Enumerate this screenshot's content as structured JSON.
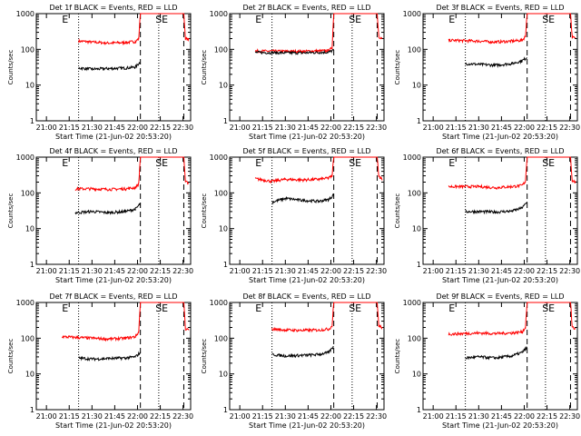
{
  "figure": {
    "start_time_label": "Start Time (21-Jun-02 20:53:20)",
    "ylabel": "Counts/sec",
    "x_tick_labels": [
      "21:00",
      "21:15",
      "21:30",
      "21:45",
      "22:00",
      "22:15",
      "22:30"
    ],
    "y_tick_labels": [
      "1",
      "10",
      "100",
      "1000"
    ],
    "colors": {
      "events": "#000000",
      "lld": "#ff0000"
    }
  },
  "chart_data": [
    {
      "type": "line",
      "title": "Det 1f BLACK = Events, RED = LLD",
      "xlabel": "Start Time (21-Jun-02 20:53:20)",
      "ylabel": "Counts/sec",
      "yscale": "log",
      "ylim": [
        1,
        1000
      ],
      "xlim_minutes": [
        -9,
        34
      ],
      "x_ticks": [
        "21:00",
        "21:15",
        "21:30",
        "21:45",
        "22:00",
        "22:15",
        "22:30"
      ],
      "markers": [
        {
          "label": "E",
          "minutes": -9
        },
        {
          "label": "SE",
          "minutes": 19
        }
      ],
      "dotted_lines_minutes": [
        -4,
        20
      ],
      "dashed_lines_minutes": [
        14.5,
        27.5
      ],
      "series": [
        {
          "color": "#ff0000",
          "values_at_minutes": [
            [
              -4,
              170
            ],
            [
              0,
              160
            ],
            [
              5,
              150
            ],
            [
              10,
              155
            ],
            [
              13,
              165
            ],
            [
              14,
              200
            ],
            [
              14.5,
              1000
            ],
            [
              27.5,
              1000
            ],
            [
              28,
              200
            ],
            [
              29,
              190
            ]
          ]
        },
        {
          "color": "#000000",
          "values_at_minutes": [
            [
              -4,
              30
            ],
            [
              0,
              28
            ],
            [
              5,
              29
            ],
            [
              10,
              30
            ],
            [
              13,
              32
            ],
            [
              14.5,
              45
            ]
          ]
        }
      ]
    },
    {
      "type": "line",
      "title": "Det 2f BLACK = Events, RED = LLD",
      "xlabel": "Start Time (21-Jun-02 20:53:20)",
      "ylabel": "Counts/sec",
      "yscale": "log",
      "ylim": [
        1,
        1000
      ],
      "xlim_minutes": [
        -9,
        34
      ],
      "x_ticks": [
        "21:00",
        "21:15",
        "21:30",
        "21:45",
        "22:00",
        "22:15",
        "22:30"
      ],
      "markers": [
        {
          "label": "E",
          "minutes": -9
        },
        {
          "label": "SE",
          "minutes": 19
        }
      ],
      "dotted_lines_minutes": [
        -4,
        20
      ],
      "dashed_lines_minutes": [
        14.5,
        27.5
      ],
      "series": [
        {
          "color": "#ff0000",
          "values_at_minutes": [
            [
              -9,
              90
            ],
            [
              0,
              88
            ],
            [
              5,
              88
            ],
            [
              10,
              90
            ],
            [
              13,
              92
            ],
            [
              14,
              110
            ],
            [
              14.5,
              1000
            ],
            [
              27.5,
              1000
            ],
            [
              28,
              230
            ],
            [
              29,
              200
            ]
          ]
        },
        {
          "color": "#000000",
          "values_at_minutes": [
            [
              -9,
              82
            ],
            [
              0,
              80
            ],
            [
              5,
              80
            ],
            [
              10,
              82
            ],
            [
              13,
              84
            ],
            [
              14.5,
              95
            ]
          ]
        }
      ]
    },
    {
      "type": "line",
      "title": "Det 3f BLACK = Events, RED = LLD",
      "xlabel": "Start Time (21-Jun-02 20:53:20)",
      "ylabel": "Counts/sec",
      "yscale": "log",
      "ylim": [
        1,
        1000
      ],
      "xlim_minutes": [
        -9,
        34
      ],
      "x_ticks": [
        "21:00",
        "21:15",
        "21:30",
        "21:45",
        "22:00",
        "22:15",
        "22:30"
      ],
      "markers": [
        {
          "label": "E",
          "minutes": -9
        },
        {
          "label": "SE",
          "minutes": 19
        }
      ],
      "dotted_lines_minutes": [
        -4,
        20
      ],
      "dashed_lines_minutes": [
        14.5,
        27.5
      ],
      "series": [
        {
          "color": "#ff0000",
          "values_at_minutes": [
            [
              -9,
              180
            ],
            [
              0,
              170
            ],
            [
              5,
              160
            ],
            [
              10,
              170
            ],
            [
              13,
              180
            ],
            [
              14,
              230
            ],
            [
              14.5,
              1000
            ],
            [
              27.5,
              1000
            ],
            [
              28,
              220
            ],
            [
              29,
              200
            ]
          ]
        },
        {
          "color": "#000000",
          "values_at_minutes": [
            [
              -4,
              40
            ],
            [
              0,
              38
            ],
            [
              5,
              36
            ],
            [
              10,
              40
            ],
            [
              13,
              48
            ],
            [
              14.5,
              60
            ]
          ]
        }
      ]
    },
    {
      "type": "line",
      "title": "Det 4f BLACK = Events, RED = LLD",
      "xlabel": "Start Time (21-Jun-02 20:53:20)",
      "ylabel": "Counts/sec",
      "yscale": "log",
      "ylim": [
        1,
        1000
      ],
      "xlim_minutes": [
        -9,
        34
      ],
      "x_ticks": [
        "21:00",
        "21:15",
        "21:30",
        "21:45",
        "22:00",
        "22:15",
        "22:30"
      ],
      "markers": [
        {
          "label": "E",
          "minutes": -9
        },
        {
          "label": "SE",
          "minutes": 19
        }
      ],
      "dotted_lines_minutes": [
        -4,
        20
      ],
      "dashed_lines_minutes": [
        14.5,
        27.5
      ],
      "series": [
        {
          "color": "#ff0000",
          "values_at_minutes": [
            [
              -5,
              130
            ],
            [
              0,
              130
            ],
            [
              5,
              125
            ],
            [
              10,
              130
            ],
            [
              13,
              140
            ],
            [
              14,
              180
            ],
            [
              14.5,
              1000
            ],
            [
              27.5,
              1000
            ],
            [
              28,
              200
            ],
            [
              29,
              190
            ]
          ]
        },
        {
          "color": "#000000",
          "values_at_minutes": [
            [
              -5,
              28
            ],
            [
              0,
              30
            ],
            [
              5,
              28
            ],
            [
              10,
              30
            ],
            [
              13,
              35
            ],
            [
              14.5,
              50
            ]
          ]
        }
      ]
    },
    {
      "type": "line",
      "title": "Det 5f BLACK = Events, RED = LLD",
      "xlabel": "Start Time (21-Jun-02 20:53:20)",
      "ylabel": "Counts/sec",
      "yscale": "log",
      "ylim": [
        1,
        1000
      ],
      "xlim_minutes": [
        -9,
        34
      ],
      "x_ticks": [
        "21:00",
        "21:15",
        "21:30",
        "21:45",
        "22:00",
        "22:15",
        "22:30"
      ],
      "markers": [
        {
          "label": "E",
          "minutes": -9
        },
        {
          "label": "SE",
          "minutes": 19
        }
      ],
      "dotted_lines_minutes": [
        -4,
        20
      ],
      "dashed_lines_minutes": [
        14.5,
        27.5
      ],
      "series": [
        {
          "color": "#ff0000",
          "values_at_minutes": [
            [
              -9,
              250
            ],
            [
              -4,
              210
            ],
            [
              0,
              240
            ],
            [
              5,
              230
            ],
            [
              10,
              240
            ],
            [
              13,
              260
            ],
            [
              14,
              300
            ],
            [
              14.5,
              1000
            ],
            [
              27.5,
              1000
            ],
            [
              28,
              300
            ],
            [
              29,
              240
            ]
          ]
        },
        {
          "color": "#000000",
          "values_at_minutes": [
            [
              -4,
              55
            ],
            [
              0,
              70
            ],
            [
              5,
              62
            ],
            [
              10,
              58
            ],
            [
              13,
              65
            ],
            [
              14.5,
              90
            ]
          ]
        }
      ]
    },
    {
      "type": "line",
      "title": "Det 6f BLACK = Events, RED = LLD",
      "xlabel": "Start Time (21-Jun-02 20:53:20)",
      "ylabel": "Counts/sec",
      "yscale": "log",
      "ylim": [
        1,
        1000
      ],
      "xlim_minutes": [
        -9,
        34
      ],
      "x_ticks": [
        "21:00",
        "21:15",
        "21:30",
        "21:45",
        "22:00",
        "22:15",
        "22:30"
      ],
      "markers": [
        {
          "label": "E",
          "minutes": -9
        },
        {
          "label": "SE",
          "minutes": 19
        }
      ],
      "dotted_lines_minutes": [
        -4,
        20
      ],
      "dashed_lines_minutes": [
        14.5,
        27.5
      ],
      "series": [
        {
          "color": "#ff0000",
          "values_at_minutes": [
            [
              -9,
              150
            ],
            [
              0,
              150
            ],
            [
              5,
              140
            ],
            [
              10,
              150
            ],
            [
              13,
              160
            ],
            [
              14,
              210
            ],
            [
              14.5,
              1000
            ],
            [
              27.5,
              1000
            ],
            [
              28,
              220
            ],
            [
              29,
              200
            ]
          ]
        },
        {
          "color": "#000000",
          "values_at_minutes": [
            [
              -4,
              30
            ],
            [
              0,
              30
            ],
            [
              5,
              29
            ],
            [
              10,
              31
            ],
            [
              13,
              38
            ],
            [
              14.5,
              55
            ]
          ]
        }
      ]
    },
    {
      "type": "line",
      "title": "Det 7f BLACK = Events, RED = LLD",
      "xlabel": "Start Time (21-Jun-02 20:53:20)",
      "ylabel": "Counts/sec",
      "yscale": "log",
      "ylim": [
        1,
        1000
      ],
      "xlim_minutes": [
        -9,
        34
      ],
      "x_ticks": [
        "21:00",
        "21:15",
        "21:30",
        "21:45",
        "22:00",
        "22:15",
        "22:30"
      ],
      "markers": [
        {
          "label": "E",
          "minutes": -9
        },
        {
          "label": "SE",
          "minutes": 19
        }
      ],
      "dotted_lines_minutes": [
        -4,
        20
      ],
      "dashed_lines_minutes": [
        14.5,
        27.5
      ],
      "series": [
        {
          "color": "#ff0000",
          "values_at_minutes": [
            [
              -9,
              110
            ],
            [
              0,
              100
            ],
            [
              5,
              95
            ],
            [
              10,
              100
            ],
            [
              13,
              110
            ],
            [
              14,
              150
            ],
            [
              14.5,
              1000
            ],
            [
              27.5,
              1000
            ],
            [
              28,
              180
            ],
            [
              29,
              170
            ]
          ]
        },
        {
          "color": "#000000",
          "values_at_minutes": [
            [
              -4,
              28
            ],
            [
              0,
              26
            ],
            [
              5,
              27
            ],
            [
              10,
              28
            ],
            [
              13,
              30
            ],
            [
              14.5,
              40
            ]
          ]
        }
      ]
    },
    {
      "type": "line",
      "title": "Det 8f BLACK = Events, RED = LLD",
      "xlabel": "Start Time (21-Jun-02 20:53:20)",
      "ylabel": "Counts/sec",
      "yscale": "log",
      "ylim": [
        1,
        1000
      ],
      "xlim_minutes": [
        -9,
        34
      ],
      "x_ticks": [
        "21:00",
        "21:15",
        "21:30",
        "21:45",
        "22:00",
        "22:15",
        "22:30"
      ],
      "markers": [
        {
          "label": "E",
          "minutes": -9
        },
        {
          "label": "SE",
          "minutes": 19
        }
      ],
      "dotted_lines_minutes": [
        -4,
        20
      ],
      "dashed_lines_minutes": [
        14.5,
        27.5
      ],
      "series": [
        {
          "color": "#ff0000",
          "values_at_minutes": [
            [
              -4,
              180
            ],
            [
              0,
              170
            ],
            [
              5,
              165
            ],
            [
              10,
              170
            ],
            [
              13,
              180
            ],
            [
              14,
              220
            ],
            [
              14.5,
              1000
            ],
            [
              27.5,
              1000
            ],
            [
              28,
              220
            ],
            [
              29,
              200
            ]
          ]
        },
        {
          "color": "#000000",
          "values_at_minutes": [
            [
              -4,
              35
            ],
            [
              0,
              32
            ],
            [
              5,
              33
            ],
            [
              10,
              35
            ],
            [
              13,
              40
            ],
            [
              14.5,
              60
            ]
          ]
        }
      ]
    },
    {
      "type": "line",
      "title": "Det 9f BLACK = Events, RED = LLD",
      "xlabel": "Start Time (21-Jun-02 20:53:20)",
      "ylabel": "Counts/sec",
      "yscale": "log",
      "ylim": [
        1,
        1000
      ],
      "xlim_minutes": [
        -9,
        34
      ],
      "x_ticks": [
        "21:00",
        "21:15",
        "21:30",
        "21:45",
        "22:00",
        "22:15",
        "22:30"
      ],
      "markers": [
        {
          "label": "E",
          "minutes": -9
        },
        {
          "label": "SE",
          "minutes": 19
        }
      ],
      "dotted_lines_minutes": [
        -4,
        20
      ],
      "dashed_lines_minutes": [
        14.5,
        27.5
      ],
      "series": [
        {
          "color": "#ff0000",
          "values_at_minutes": [
            [
              -9,
              130
            ],
            [
              0,
              140
            ],
            [
              5,
              135
            ],
            [
              10,
              140
            ],
            [
              13,
              150
            ],
            [
              14,
              200
            ],
            [
              14.5,
              1000
            ],
            [
              27.5,
              1000
            ],
            [
              28,
              200
            ],
            [
              29,
              180
            ]
          ]
        },
        {
          "color": "#000000",
          "values_at_minutes": [
            [
              -4,
              28
            ],
            [
              0,
              30
            ],
            [
              5,
              28
            ],
            [
              10,
              32
            ],
            [
              13,
              40
            ],
            [
              14.5,
              55
            ]
          ]
        }
      ]
    }
  ]
}
